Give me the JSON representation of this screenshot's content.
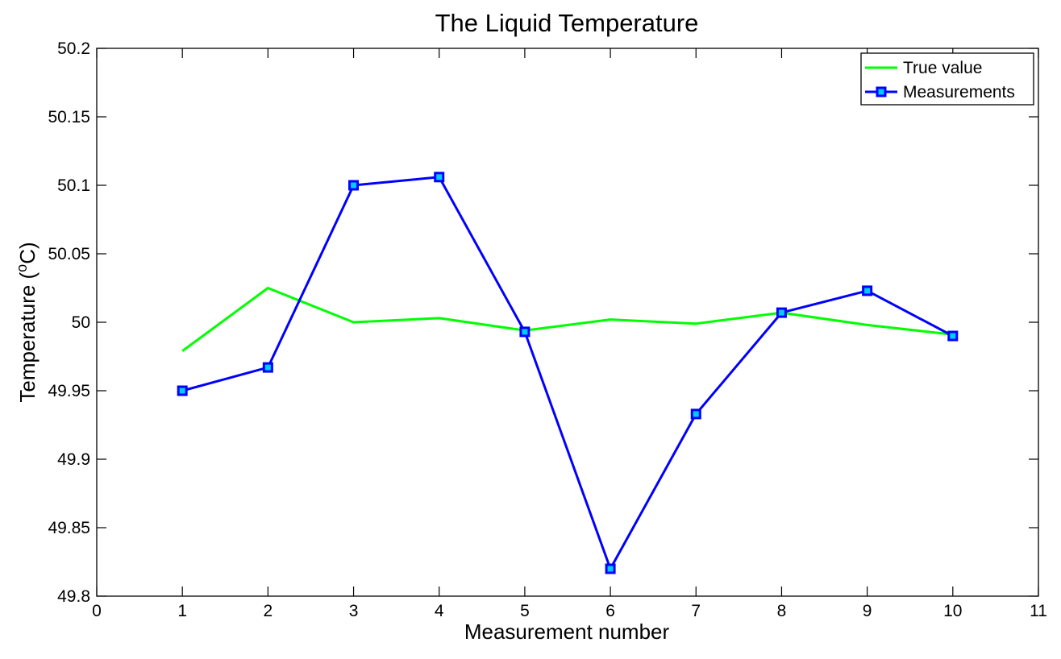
{
  "chart_data": {
    "type": "line",
    "title": "The Liquid  Temperature",
    "xlabel": "Measurement number",
    "ylabel_main": "Temperature (",
    "ylabel_sup": "o",
    "ylabel_tail": "C)",
    "xlim": [
      0,
      11
    ],
    "ylim": [
      49.8,
      50.2
    ],
    "xticks": [
      "0",
      "1",
      "2",
      "3",
      "4",
      "5",
      "6",
      "7",
      "8",
      "9",
      "10",
      "11"
    ],
    "yticks": [
      "49.8",
      "49.85",
      "49.9",
      "49.95",
      "50",
      "50.05",
      "50.1",
      "50.15",
      "50.2"
    ],
    "grid": false,
    "legend_position": "top-right",
    "x": [
      1,
      2,
      3,
      4,
      5,
      6,
      7,
      8,
      9,
      10
    ],
    "series": [
      {
        "name": "True value",
        "color": "#00ff00",
        "marker": "none",
        "values": [
          49.979,
          50.025,
          50.0,
          50.003,
          49.994,
          50.002,
          49.999,
          50.007,
          49.998,
          49.991
        ]
      },
      {
        "name": "Measurements",
        "color": "#0000ff",
        "marker": "square",
        "marker_fill": "#00ccff",
        "values": [
          49.95,
          49.967,
          50.1,
          50.106,
          49.993,
          49.82,
          49.933,
          50.007,
          50.023,
          49.99
        ]
      }
    ]
  }
}
